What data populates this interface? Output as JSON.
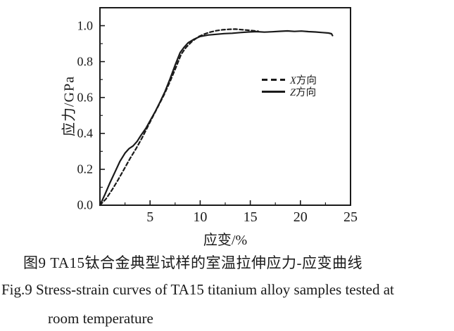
{
  "figure": {
    "caption_zh": "图9 TA15钛合金典型试样的室温拉伸应力-应变曲线",
    "caption_en_line1": "Fig.9  Stress-strain curves of TA15 titanium alloy samples tested at",
    "caption_en_line2": "room temperature"
  },
  "colors": {
    "ink": "#1a1a1a",
    "background": "#ffffff"
  },
  "chart_data": {
    "type": "line",
    "title": "",
    "xlabel": "应变/%",
    "ylabel": "应力/GPa",
    "xlim": [
      0,
      25
    ],
    "ylim": [
      0,
      1.1
    ],
    "x_ticks": [
      5,
      10,
      15,
      20,
      25
    ],
    "x_tick_labels": [
      "5",
      "10",
      "15",
      "20",
      "25"
    ],
    "x_minor_ticks": [
      2.5,
      7.5,
      12.5,
      17.5,
      22.5
    ],
    "y_ticks": [
      0,
      0.2,
      0.4,
      0.6,
      0.8,
      1.0
    ],
    "y_tick_labels": [
      "0.0",
      "0.2",
      "0.4",
      "0.6",
      "0.8",
      "1.0"
    ],
    "y_minor_ticks": [
      0.1,
      0.3,
      0.5,
      0.7,
      0.9
    ],
    "grid": false,
    "legend_position": "center-right",
    "series": [
      {
        "name": "X方向",
        "style": "dashed",
        "points": [
          [
            0,
            0
          ],
          [
            0.6,
            0.035
          ],
          [
            1.2,
            0.085
          ],
          [
            1.8,
            0.14
          ],
          [
            2.4,
            0.2
          ],
          [
            3.0,
            0.26
          ],
          [
            3.6,
            0.315
          ],
          [
            4.2,
            0.375
          ],
          [
            4.7,
            0.43
          ],
          [
            5.2,
            0.485
          ],
          [
            5.8,
            0.55
          ],
          [
            6.4,
            0.615
          ],
          [
            7.0,
            0.69
          ],
          [
            7.6,
            0.77
          ],
          [
            8.1,
            0.84
          ],
          [
            8.6,
            0.88
          ],
          [
            9.2,
            0.913
          ],
          [
            9.8,
            0.938
          ],
          [
            10.4,
            0.953
          ],
          [
            11.0,
            0.964
          ],
          [
            11.6,
            0.972
          ],
          [
            12.2,
            0.977
          ],
          [
            12.9,
            0.98
          ],
          [
            13.5,
            0.981
          ],
          [
            14.1,
            0.978
          ],
          [
            14.7,
            0.975
          ],
          [
            15.3,
            0.972
          ],
          [
            15.8,
            0.969
          ]
        ]
      },
      {
        "name": "Z方向",
        "style": "solid",
        "points": [
          [
            0,
            0
          ],
          [
            0.5,
            0.06
          ],
          [
            1.0,
            0.125
          ],
          [
            1.5,
            0.185
          ],
          [
            2.0,
            0.245
          ],
          [
            2.5,
            0.29
          ],
          [
            2.9,
            0.315
          ],
          [
            3.3,
            0.33
          ],
          [
            3.7,
            0.355
          ],
          [
            4.1,
            0.39
          ],
          [
            4.6,
            0.43
          ],
          [
            5.0,
            0.47
          ],
          [
            5.5,
            0.52
          ],
          [
            6.0,
            0.575
          ],
          [
            6.5,
            0.635
          ],
          [
            7.0,
            0.705
          ],
          [
            7.5,
            0.78
          ],
          [
            8.0,
            0.85
          ],
          [
            8.4,
            0.88
          ],
          [
            8.8,
            0.905
          ],
          [
            9.4,
            0.925
          ],
          [
            10.0,
            0.94
          ],
          [
            10.8,
            0.948
          ],
          [
            11.6,
            0.952
          ],
          [
            12.4,
            0.956
          ],
          [
            13.2,
            0.958
          ],
          [
            14.0,
            0.962
          ],
          [
            14.8,
            0.965
          ],
          [
            15.6,
            0.967
          ],
          [
            16.4,
            0.964
          ],
          [
            17.2,
            0.966
          ],
          [
            18.0,
            0.969
          ],
          [
            18.7,
            0.971
          ],
          [
            19.4,
            0.968
          ],
          [
            20.1,
            0.97
          ],
          [
            20.8,
            0.967
          ],
          [
            21.5,
            0.965
          ],
          [
            22.2,
            0.962
          ],
          [
            22.8,
            0.959
          ],
          [
            23.1,
            0.955
          ],
          [
            23.2,
            0.945
          ]
        ]
      }
    ]
  }
}
